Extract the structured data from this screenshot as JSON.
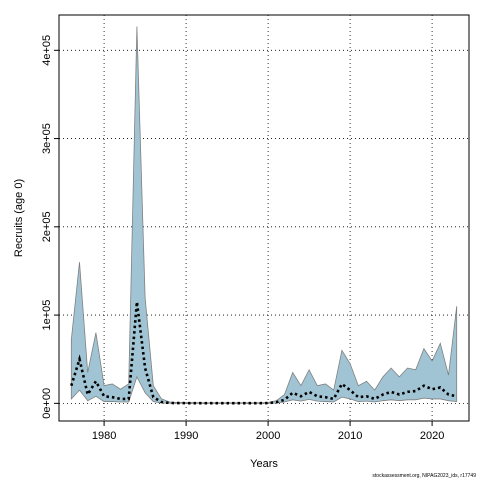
{
  "chart_data": {
    "type": "area",
    "xlabel": "Years",
    "ylabel": "Recruits (age 0)",
    "credit": "stockassessment.org, NIPAG2023_ids, r17749",
    "xlim": [
      1974.5,
      2024.5
    ],
    "ylim": [
      -20000,
      440000
    ],
    "x_ticks": [
      1980,
      1990,
      2000,
      2010,
      2020
    ],
    "x_tick_labels": [
      "1980",
      "1990",
      "2000",
      "2010",
      "2020"
    ],
    "y_ticks": [
      0,
      100000,
      200000,
      300000,
      400000
    ],
    "y_tick_labels": [
      "0e+00",
      "1e+05",
      "2e+05",
      "3e+05",
      "4e+05"
    ],
    "grid": true,
    "colors": {
      "band": "#a0c4d3",
      "band_edge": "#808080",
      "estimate": "#000000",
      "grid": "#000000"
    },
    "x": [
      1976,
      1977,
      1978,
      1979,
      1980,
      1981,
      1982,
      1983,
      1984,
      1985,
      1986,
      1987,
      1988,
      1989,
      1990,
      1991,
      1992,
      1993,
      1994,
      1995,
      1996,
      1997,
      1998,
      1999,
      2000,
      2001,
      2002,
      2003,
      2004,
      2005,
      2006,
      2007,
      2008,
      2009,
      2010,
      2011,
      2012,
      2013,
      2014,
      2015,
      2016,
      2017,
      2018,
      2019,
      2020,
      2021,
      2022,
      2023
    ],
    "series": [
      {
        "role": "upper",
        "values": [
          72000,
          160000,
          35000,
          80000,
          20000,
          22000,
          16000,
          22000,
          427000,
          120000,
          20000,
          5000,
          1500,
          1000,
          900,
          800,
          700,
          700,
          700,
          700,
          700,
          700,
          700,
          700,
          1000,
          3000,
          10000,
          35000,
          20000,
          38000,
          20000,
          22000,
          15000,
          60000,
          45000,
          20000,
          25000,
          15000,
          30000,
          40000,
          30000,
          40000,
          38000,
          62000,
          48000,
          68000,
          32000,
          110000
        ]
      },
      {
        "role": "estimate",
        "values": [
          20000,
          50000,
          10000,
          25000,
          8000,
          7000,
          5000,
          5000,
          115000,
          40000,
          7000,
          1500,
          400,
          300,
          250,
          200,
          200,
          200,
          200,
          200,
          200,
          200,
          200,
          200,
          300,
          1200,
          4000,
          12000,
          8000,
          13000,
          8000,
          7000,
          5000,
          22000,
          15000,
          7000,
          8000,
          5000,
          10000,
          13000,
          10000,
          13000,
          14000,
          20000,
          16000,
          18000,
          10000,
          8000
        ]
      },
      {
        "role": "lower",
        "values": [
          5000,
          15000,
          3000,
          8000,
          2000,
          2000,
          1500,
          1500,
          30000,
          12000,
          2000,
          400,
          100,
          80,
          60,
          50,
          50,
          50,
          50,
          50,
          50,
          50,
          50,
          50,
          80,
          400,
          1500,
          4000,
          2500,
          4500,
          2500,
          2000,
          1500,
          7000,
          5000,
          2000,
          2500,
          1500,
          3000,
          4000,
          3000,
          4000,
          4000,
          6000,
          5000,
          5000,
          3000,
          2000
        ]
      }
    ]
  }
}
